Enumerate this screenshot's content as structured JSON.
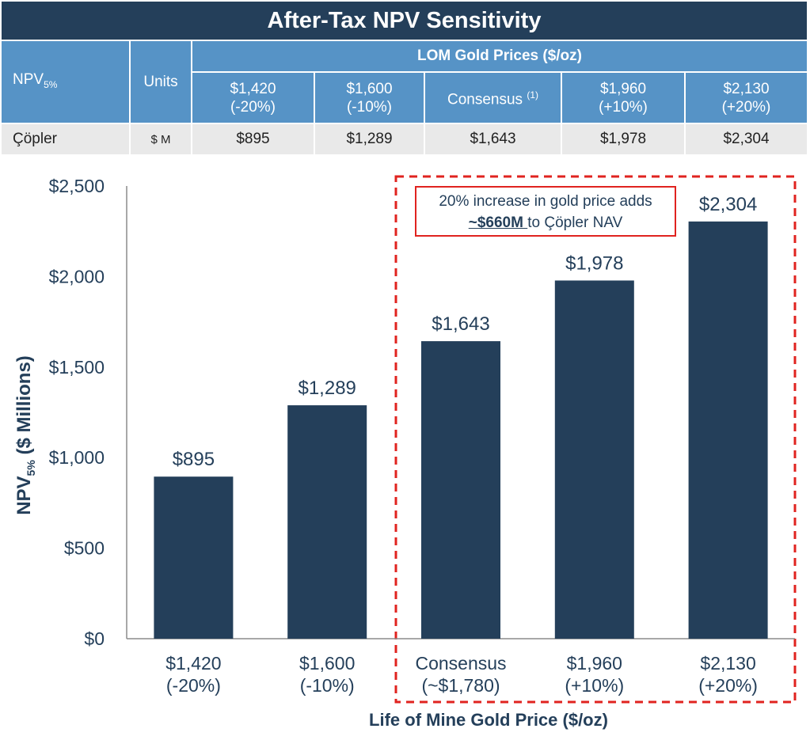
{
  "title": "After-Tax NPV Sensitivity",
  "table": {
    "npv_label": "NPV",
    "npv_sub": "5%",
    "units_label": "Units",
    "group_header": "LOM Gold Prices ($/oz)",
    "columns": [
      {
        "line1": "$1,420",
        "line2": "(-20%)"
      },
      {
        "line1": "$1,600",
        "line2": "(-10%)"
      },
      {
        "line1": "Consensus",
        "sup": "(1)"
      },
      {
        "line1": "$1,960",
        "line2": "(+10%)"
      },
      {
        "line1": "$2,130",
        "line2": "(+20%)"
      }
    ],
    "row": {
      "name": "Çöpler",
      "units": "$ M",
      "values": [
        "$895",
        "$1,289",
        "$1,643",
        "$1,978",
        "$2,304"
      ]
    }
  },
  "callout": {
    "line1": "20% increase in gold price adds",
    "line2_bold": "~$660M ",
    "line2_rest": "to Çöpler NAV"
  },
  "chart_data": {
    "type": "bar",
    "categories": [
      [
        "$1,420",
        "(-20%)"
      ],
      [
        "$1,600",
        "(-10%)"
      ],
      [
        "Consensus",
        "(~$1,780)"
      ],
      [
        "$1,960",
        "(+10%)"
      ],
      [
        "$2,130",
        "(+20%)"
      ]
    ],
    "values": [
      895,
      1289,
      1643,
      1978,
      2304
    ],
    "value_labels": [
      "$895",
      "$1,289",
      "$1,643",
      "$1,978",
      "$2,304"
    ],
    "ylabel_main": "NPV",
    "ylabel_sub": "5%",
    "ylabel_rest": " ($ Millions)",
    "xlabel": "Life of Mine Gold Price ($/oz)",
    "ylim": [
      0,
      2500
    ],
    "yticks": [
      0,
      500,
      1000,
      1500,
      2000,
      2500
    ],
    "ytick_labels": [
      "$0",
      "$500",
      "$1,000",
      "$1,500",
      "$2,000",
      "$2,500"
    ],
    "bar_color": "#243f5a",
    "highlight_color": "#e0231f",
    "grid": false
  }
}
